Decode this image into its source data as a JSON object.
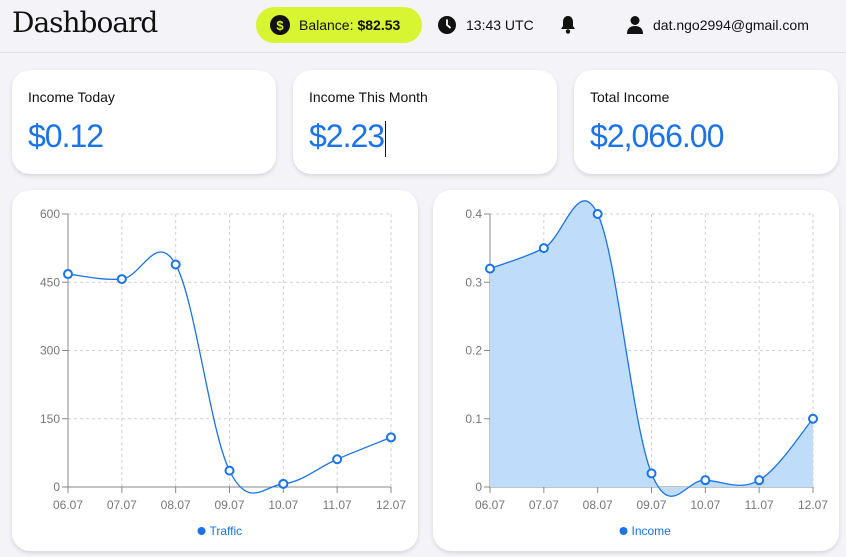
{
  "header": {
    "logo": "Dashboard",
    "balance_label": "Balance:",
    "balance_value": "$82.53",
    "time": "13:43 UTC",
    "user_email": "dat.ngo2994@gmail.com"
  },
  "stats": [
    {
      "label": "Income Today",
      "value": "$0.12"
    },
    {
      "label": "Income This Month",
      "value": "$2.23"
    },
    {
      "label": "Total Income",
      "value": "$2,066.00"
    }
  ],
  "colors": {
    "accent": "#1a73e8",
    "balance_bg": "#d8f531",
    "area_fill": "#bfdcfb"
  },
  "chart_data": [
    {
      "type": "line",
      "x": [
        "06.07",
        "07.07",
        "08.07",
        "09.07",
        "10.07",
        "11.07",
        "12.07"
      ],
      "series": [
        {
          "name": "Traffic",
          "values": [
            468,
            457,
            489,
            36,
            7,
            61,
            109
          ]
        }
      ],
      "ylim": [
        0,
        600
      ],
      "yticks": [
        "0",
        "150",
        "300",
        "450",
        "600"
      ],
      "grid": true,
      "legend": "bottom"
    },
    {
      "type": "area",
      "x": [
        "06.07",
        "07.07",
        "08.07",
        "09.07",
        "10.07",
        "11.07",
        "12.07"
      ],
      "series": [
        {
          "name": "Income",
          "values": [
            0.32,
            0.35,
            0.4,
            0.02,
            0.01,
            0.01,
            0.1
          ]
        }
      ],
      "ylim": [
        0,
        0.4
      ],
      "yticks": [
        "0",
        "0.1",
        "0.2",
        "0.3",
        "0.4"
      ],
      "grid": true,
      "legend": "bottom"
    }
  ]
}
